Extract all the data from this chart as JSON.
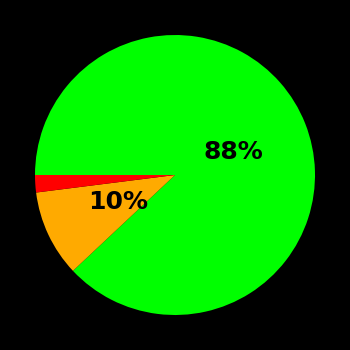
{
  "slices": [
    88,
    10,
    2
  ],
  "colors": [
    "#00ff00",
    "#ffaa00",
    "#ff0000"
  ],
  "background_color": "#000000",
  "startangle": 180,
  "figsize": [
    3.5,
    3.5
  ],
  "dpi": 100,
  "label_fontsize": 18,
  "label_color": "#000000"
}
